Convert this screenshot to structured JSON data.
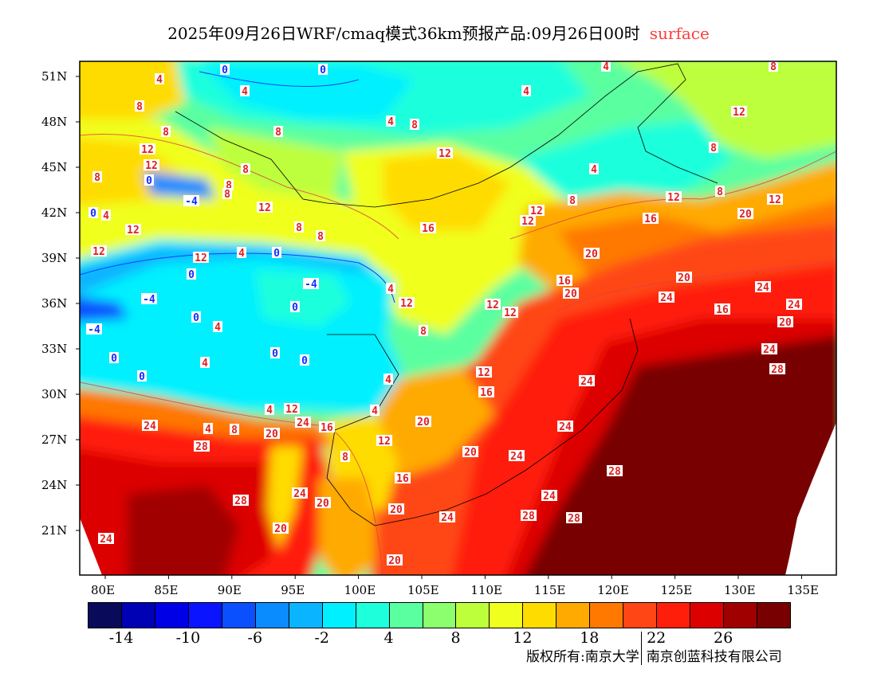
{
  "title": {
    "main": "2025年09月26日WRF/cmaq模式36km预报产品:09月26日00时",
    "variable": "surface"
  },
  "axes": {
    "lon_labels": [
      "80E",
      "85E",
      "90E",
      "95E",
      "100E",
      "105E",
      "110E",
      "115E",
      "120E",
      "125E",
      "130E",
      "135E"
    ],
    "lat_labels": [
      "51N",
      "48N",
      "45N",
      "42N",
      "39N",
      "36N",
      "33N",
      "30N",
      "27N",
      "24N",
      "21N"
    ]
  },
  "colorbar": {
    "colors": [
      "#0a0a5a",
      "#0000b4",
      "#0000e6",
      "#0a14ff",
      "#0a50ff",
      "#0a8cff",
      "#0ab4ff",
      "#00f0ff",
      "#1effdc",
      "#5affa0",
      "#8cff6e",
      "#beff3c",
      "#f0ff1e",
      "#ffdc00",
      "#ffaa00",
      "#ff7800",
      "#ff4614",
      "#ff1e0a",
      "#dc0000",
      "#a00000",
      "#780000"
    ],
    "labels": [
      "-14",
      "-10",
      "-6",
      "-2",
      "4",
      "8",
      "12",
      "18",
      "22",
      "26"
    ]
  },
  "contour_labels": [
    "4",
    "0",
    "4",
    "0",
    "8",
    "4",
    "4",
    "8",
    "4",
    "8",
    "8",
    "8",
    "12",
    "12",
    "8",
    "12",
    "8",
    "12",
    "8",
    "4",
    "0",
    "8",
    "8",
    "-4",
    "8",
    "12",
    "12",
    "8",
    "0",
    "4",
    "12",
    "12",
    "12",
    "16",
    "20",
    "12",
    "8",
    "8",
    "16",
    "12",
    "12",
    "4",
    "0",
    "20",
    "0",
    "-4",
    "16",
    "20",
    "20",
    "-4",
    "4",
    "12",
    "12",
    "12",
    "24",
    "24",
    "24",
    "16",
    "0",
    "0",
    "-4",
    "20",
    "8",
    "4",
    "24",
    "0",
    "0",
    "0",
    "4",
    "28",
    "12",
    "0",
    "4",
    "24",
    "16",
    "4",
    "4",
    "12",
    "24",
    "24",
    "20",
    "4",
    "8",
    "20",
    "16",
    "24",
    "12",
    "28",
    "20",
    "24",
    "8",
    "28",
    "16",
    "24",
    "28",
    "20",
    "24",
    "20",
    "24",
    "28",
    "28",
    "20",
    "24",
    "20"
  ],
  "copyright": {
    "owner": "版权所有:南京大学",
    "partner": "南京创蓝科技有限公司"
  }
}
